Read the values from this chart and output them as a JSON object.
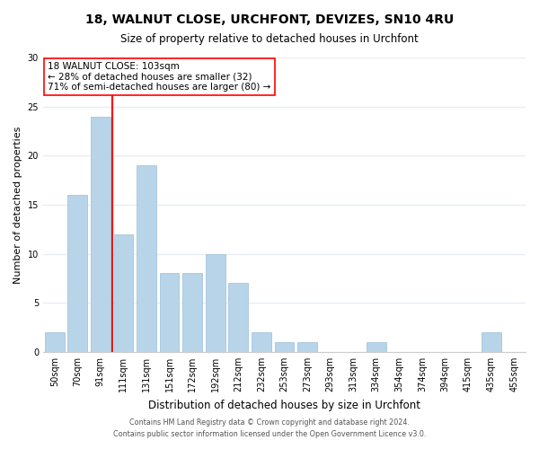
{
  "title": "18, WALNUT CLOSE, URCHFONT, DEVIZES, SN10 4RU",
  "subtitle": "Size of property relative to detached houses in Urchfont",
  "xlabel": "Distribution of detached houses by size in Urchfont",
  "ylabel": "Number of detached properties",
  "bin_labels": [
    "50sqm",
    "70sqm",
    "91sqm",
    "111sqm",
    "131sqm",
    "151sqm",
    "172sqm",
    "192sqm",
    "212sqm",
    "232sqm",
    "253sqm",
    "273sqm",
    "293sqm",
    "313sqm",
    "334sqm",
    "354sqm",
    "374sqm",
    "394sqm",
    "415sqm",
    "435sqm",
    "455sqm"
  ],
  "bin_values": [
    2,
    16,
    24,
    12,
    19,
    8,
    8,
    10,
    7,
    2,
    1,
    1,
    0,
    0,
    1,
    0,
    0,
    0,
    0,
    2,
    0
  ],
  "bar_color": "#b8d4e8",
  "bar_edge_color": "#9abfd8",
  "vline_color": "red",
  "vline_x_index": 2.5,
  "annotation_text": "18 WALNUT CLOSE: 103sqm\n← 28% of detached houses are smaller (32)\n71% of semi-detached houses are larger (80) →",
  "ylim": [
    0,
    30
  ],
  "yticks": [
    0,
    5,
    10,
    15,
    20,
    25,
    30
  ],
  "footnote1": "Contains HM Land Registry data © Crown copyright and database right 2024.",
  "footnote2": "Contains public sector information licensed under the Open Government Licence v3.0.",
  "background_color": "#ffffff",
  "grid_color": "#e8eef4",
  "title_fontsize": 10,
  "subtitle_fontsize": 8.5,
  "ylabel_fontsize": 8,
  "xlabel_fontsize": 8.5,
  "tick_fontsize": 7,
  "annot_fontsize": 7.5,
  "footnote_fontsize": 5.8
}
